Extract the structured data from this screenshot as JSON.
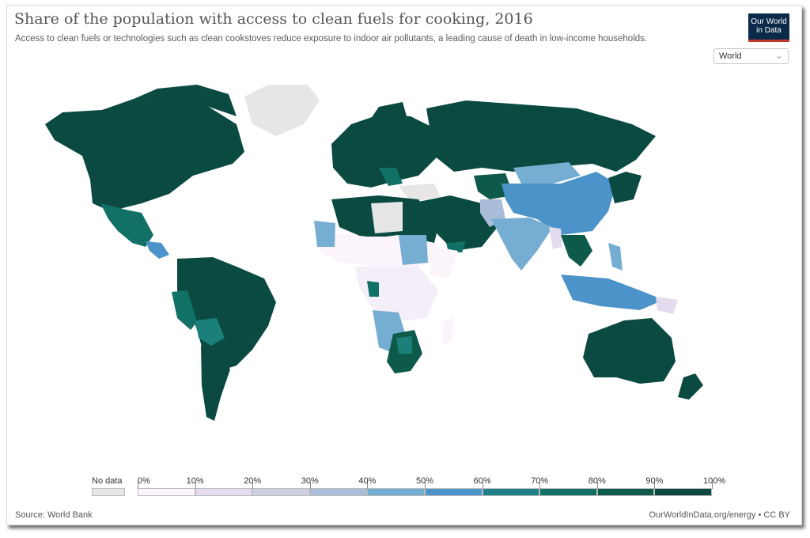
{
  "header": {
    "title": "Share of the population with access to clean fuels for cooking, 2016",
    "subtitle": "Access to clean fuels or technologies such as clean cookstoves reduce exposure to indoor air pollutants, a leading cause of death in low-income households.",
    "logo_line1": "Our World",
    "logo_line2": "in Data"
  },
  "region_selector": {
    "value": "World",
    "icon": "chevron-down-icon"
  },
  "legend": {
    "no_data_label": "No data",
    "ticks": [
      "0%",
      "10%",
      "20%",
      "30%",
      "40%",
      "50%",
      "60%",
      "70%",
      "80%",
      "90%",
      "100%"
    ],
    "colors": [
      "#fbf5fb",
      "#e4dcee",
      "#cdd0e2",
      "#a9bcd9",
      "#75add3",
      "#4b93c8",
      "#20808a",
      "#117166",
      "#0d5a4b",
      "#0a4a40"
    ],
    "no_data_color": "#e6e6e6"
  },
  "footer": {
    "source": "Source: World Bank",
    "credit": "OurWorldInData.org/energy • CC BY"
  },
  "colors": {
    "high": "#0a4a40",
    "teal": "#1b7f7a",
    "mid_blue": "#4b93c8",
    "light_blue": "#75add3",
    "low": "#f3eef7",
    "no_data": "#e6e6e6"
  }
}
